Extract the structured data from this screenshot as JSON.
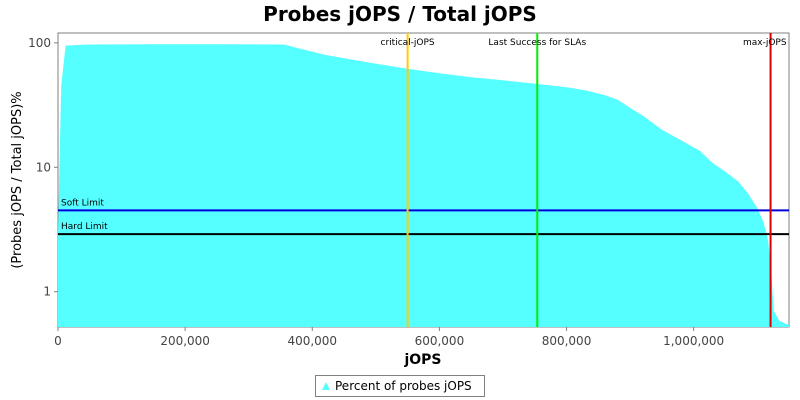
{
  "chart_data": {
    "type": "area",
    "title": "Probes jOPS / Total jOPS",
    "xlabel": "jOPS",
    "ylabel": "(Probes jOPS / Total jOPS)%",
    "y_scale": "log",
    "xlim": [
      0,
      1150000
    ],
    "ylim": [
      0.52,
      120
    ],
    "x_ticks": [
      {
        "value": 0,
        "label": "0"
      },
      {
        "value": 200000,
        "label": "200,000"
      },
      {
        "value": 400000,
        "label": "400,000"
      },
      {
        "value": 600000,
        "label": "600,000"
      },
      {
        "value": 800000,
        "label": "800,000"
      },
      {
        "value": 1000000,
        "label": "1,000,000"
      }
    ],
    "y_ticks": [
      {
        "value": 1,
        "label": "1"
      },
      {
        "value": 10,
        "label": "10"
      },
      {
        "value": 100,
        "label": "100"
      }
    ],
    "series": [
      {
        "name": "Percent of probes jOPS",
        "color": "#55ffff",
        "x": [
          0,
          5000,
          12000,
          50000,
          150000,
          250000,
          355000,
          380000,
          420000,
          500000,
          550000,
          600000,
          650000,
          700000,
          750000,
          800000,
          830000,
          860000,
          880000,
          900000,
          920000,
          950000,
          980000,
          1010000,
          1030000,
          1050000,
          1070000,
          1085000,
          1100000,
          1110000,
          1117000,
          1122000,
          1126000,
          1135000,
          1150000
        ],
        "y": [
          3,
          45,
          95,
          97,
          97.5,
          97.5,
          97,
          90,
          80,
          68,
          62,
          57,
          53,
          50,
          47,
          44,
          41.5,
          38,
          35,
          30,
          26,
          20,
          16.5,
          13.5,
          10.8,
          9.2,
          7.7,
          6.2,
          4.7,
          3.6,
          2.6,
          1.5,
          0.7,
          0.58,
          0.54
        ]
      }
    ],
    "markers": [
      {
        "label": "critical-jOPS",
        "x": 550000,
        "color": "#ffcc00"
      },
      {
        "label": "Last Success for SLAs",
        "x": 754000,
        "color": "#00ee00"
      },
      {
        "label": "max-jOPS",
        "x": 1121000,
        "color": "#dd0000"
      }
    ],
    "thresholds": [
      {
        "label": "Soft Limit",
        "y": 4.5,
        "color": "#0000dd"
      },
      {
        "label": "Hard Limit",
        "y": 2.9,
        "color": "#000000"
      }
    ],
    "legend": {
      "position": "bottom"
    },
    "grid": false
  }
}
